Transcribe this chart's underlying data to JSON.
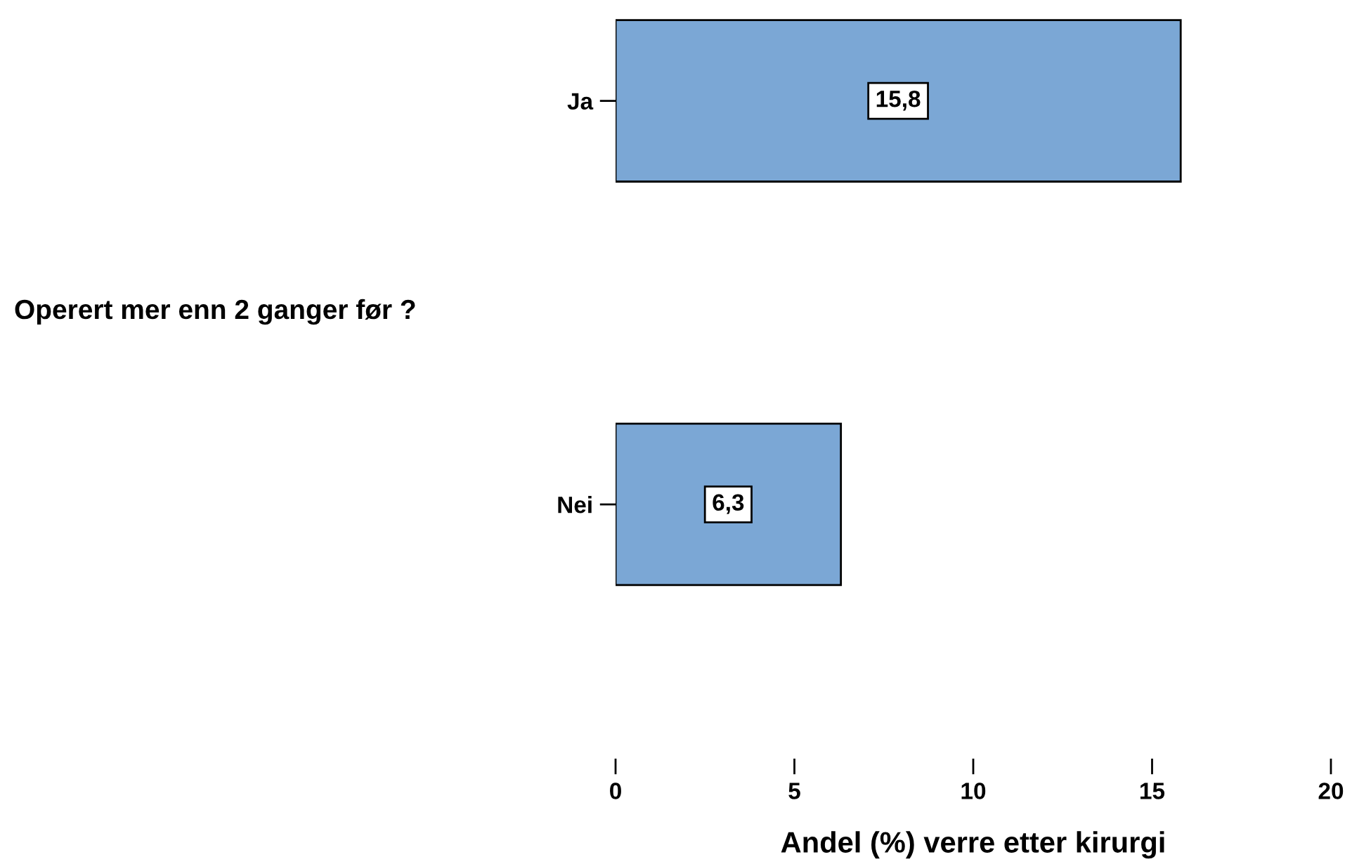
{
  "chart_data": {
    "type": "bar",
    "orientation": "horizontal",
    "categories": [
      "Ja",
      "Nei"
    ],
    "series": [
      {
        "color": "#7ba7d5",
        "values": [
          15.8,
          6.3
        ],
        "value_labels": [
          "15,8",
          "6,3"
        ]
      }
    ],
    "annotations": [
      "Operert mer enn 2 ganger før ?"
    ],
    "xlabel": "Andel (%) verre etter kirurgi",
    "xlim": [
      0,
      20
    ],
    "xticks": [
      0,
      5,
      10,
      15,
      20
    ],
    "grid": false,
    "legend": false
  }
}
